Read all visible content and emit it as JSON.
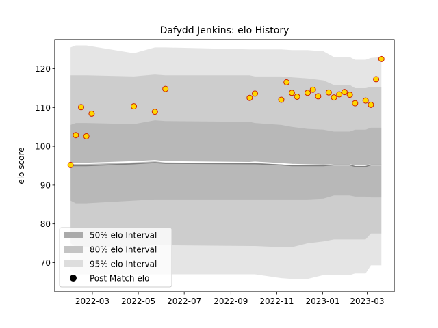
{
  "chart_data": {
    "type": "scatter",
    "title": "Dafydd Jenkins: elo History",
    "xlabel": "",
    "ylabel": "elo score",
    "xlim": [
      "2022-01-10",
      "2023-04-06"
    ],
    "ylim": [
      62.5,
      127.5
    ],
    "x_ticks": [
      {
        "date": "2022-03-01",
        "label": "2022-03"
      },
      {
        "date": "2022-05-01",
        "label": "2022-05"
      },
      {
        "date": "2022-07-01",
        "label": "2022-07"
      },
      {
        "date": "2022-09-01",
        "label": "2022-09"
      },
      {
        "date": "2022-11-01",
        "label": "2022-11"
      },
      {
        "date": "2023-01-01",
        "label": "2023-01"
      },
      {
        "date": "2023-03-01",
        "label": "2023-03"
      }
    ],
    "y_ticks": [
      70,
      80,
      90,
      100,
      110,
      120
    ],
    "grid": false,
    "legend_position": "lower-left",
    "legend": [
      {
        "label": "50% elo Interval",
        "kind": "band",
        "color": "#aaaaaa"
      },
      {
        "label": "80% elo Interval",
        "kind": "band",
        "color": "#c4c4c4"
      },
      {
        "label": "95% elo Interval",
        "kind": "band",
        "color": "#dddddd"
      },
      {
        "label": "Post Match elo",
        "kind": "marker",
        "color": "#000000"
      }
    ],
    "bands": {
      "dates": [
        "2022-01-31",
        "2022-02-07",
        "2022-02-21",
        "2022-04-25",
        "2022-05-23",
        "2022-06-06",
        "2022-09-26",
        "2022-10-03",
        "2022-11-07",
        "2022-11-21",
        "2022-12-12",
        "2023-01-02",
        "2023-01-16",
        "2023-02-06",
        "2023-02-13",
        "2023-02-27",
        "2023-03-06",
        "2023-03-20"
      ],
      "p95_upper": [
        125.5,
        126.0,
        126.0,
        124.0,
        125.5,
        125.5,
        125.0,
        125.0,
        125.0,
        124.8,
        124.8,
        124.5,
        123.0,
        123.0,
        122.3,
        122.3,
        122.8,
        123.0
      ],
      "p80_upper": [
        118.3,
        118.3,
        118.3,
        118.0,
        118.5,
        118.3,
        118.3,
        118.0,
        118.0,
        117.8,
        117.5,
        117.0,
        115.8,
        115.8,
        115.0,
        115.0,
        115.3,
        115.3
      ],
      "p50_upper": [
        105.5,
        106.0,
        106.0,
        105.7,
        106.7,
        106.5,
        106.3,
        106.0,
        105.5,
        105.0,
        104.5,
        104.3,
        103.8,
        103.8,
        104.3,
        104.3,
        104.8,
        104.8
      ],
      "p50_lower": [
        86.0,
        85.3,
        85.3,
        86.0,
        86.3,
        86.3,
        86.3,
        86.3,
        86.3,
        86.3,
        86.3,
        86.5,
        87.3,
        87.3,
        87.0,
        87.0,
        86.8,
        86.8
      ],
      "p80_lower": [
        75.0,
        74.0,
        74.0,
        74.0,
        74.5,
        74.5,
        74.3,
        74.3,
        74.0,
        74.0,
        75.0,
        75.5,
        76.0,
        76.0,
        76.0,
        76.0,
        77.5,
        77.5
      ],
      "p95_lower": [
        68.0,
        67.0,
        67.0,
        67.0,
        67.0,
        67.0,
        67.0,
        67.0,
        66.0,
        65.8,
        65.8,
        66.8,
        66.8,
        66.8,
        67.2,
        67.2,
        69.3,
        69.3
      ],
      "median": [
        95.0,
        95.0,
        95.0,
        95.5,
        95.8,
        95.6,
        95.5,
        95.5,
        95.2,
        95.0,
        95.0,
        95.0,
        95.2,
        95.2,
        94.8,
        94.8,
        95.2,
        95.2
      ],
      "mean": [
        95.6,
        95.6,
        95.6,
        96.0,
        96.3,
        96.0,
        95.8,
        95.9,
        95.5,
        95.3,
        95.2,
        95.1,
        95.2,
        95.2,
        95.0,
        95.0,
        95.2,
        95.2
      ]
    },
    "series": [
      {
        "label": "Post Match elo",
        "marker_color": "#ffd700",
        "edge_color": "#cc2200",
        "points": [
          {
            "x": "2022-01-31",
            "y": 95.2
          },
          {
            "x": "2022-02-07",
            "y": 102.9
          },
          {
            "x": "2022-02-14",
            "y": 110.1
          },
          {
            "x": "2022-02-21",
            "y": 102.6
          },
          {
            "x": "2022-02-28",
            "y": 108.4
          },
          {
            "x": "2022-04-25",
            "y": 110.3
          },
          {
            "x": "2022-05-23",
            "y": 108.9
          },
          {
            "x": "2022-06-06",
            "y": 114.8
          },
          {
            "x": "2022-09-26",
            "y": 112.5
          },
          {
            "x": "2022-10-03",
            "y": 113.6
          },
          {
            "x": "2022-11-07",
            "y": 112.0
          },
          {
            "x": "2022-11-14",
            "y": 116.5
          },
          {
            "x": "2022-11-21",
            "y": 113.8
          },
          {
            "x": "2022-11-28",
            "y": 112.8
          },
          {
            "x": "2022-12-12",
            "y": 113.8
          },
          {
            "x": "2022-12-19",
            "y": 114.6
          },
          {
            "x": "2022-12-26",
            "y": 112.9
          },
          {
            "x": "2023-01-09",
            "y": 113.9
          },
          {
            "x": "2023-01-16",
            "y": 112.6
          },
          {
            "x": "2023-01-23",
            "y": 113.4
          },
          {
            "x": "2023-01-30",
            "y": 114.0
          },
          {
            "x": "2023-02-06",
            "y": 113.3
          },
          {
            "x": "2023-02-13",
            "y": 111.1
          },
          {
            "x": "2023-02-27",
            "y": 111.8
          },
          {
            "x": "2023-03-06",
            "y": 110.7
          },
          {
            "x": "2023-03-13",
            "y": 117.3
          },
          {
            "x": "2023-03-20",
            "y": 122.5
          }
        ]
      }
    ]
  }
}
